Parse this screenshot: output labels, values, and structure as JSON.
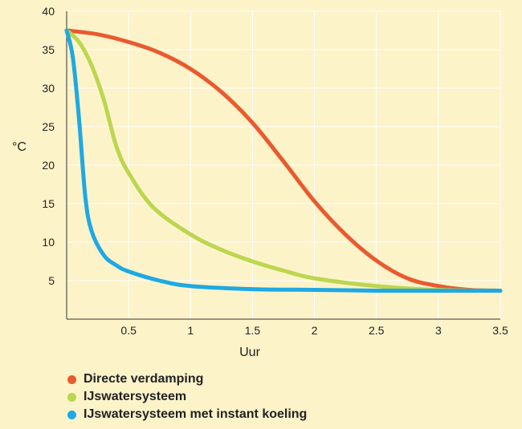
{
  "chart_data": {
    "type": "line",
    "xlabel": "Uur",
    "ylabel": "°C",
    "xlim": [
      0,
      3.5
    ],
    "ylim": [
      0,
      40
    ],
    "x_ticks": [
      0.5,
      1,
      1.5,
      2,
      2.5,
      3,
      3.5
    ],
    "x_tick_labels": [
      "0.5",
      "1",
      "1.5",
      "2",
      "2.5",
      "3",
      "3.5"
    ],
    "y_ticks": [
      5,
      10,
      15,
      20,
      25,
      30,
      35,
      40
    ],
    "y_tick_labels": [
      "5",
      "10",
      "15",
      "20",
      "25",
      "30",
      "35",
      "40"
    ],
    "grid": true,
    "legend_position": "bottom-left",
    "series": [
      {
        "name": "Directe verdamping",
        "color": "#ea5a2f",
        "x": [
          0,
          0.25,
          0.5,
          0.75,
          1.0,
          1.25,
          1.5,
          1.75,
          2.0,
          2.25,
          2.5,
          2.75,
          3.0,
          3.25,
          3.5
        ],
        "y": [
          37.5,
          37.0,
          36.0,
          34.6,
          32.5,
          29.5,
          25.5,
          20.5,
          15.3,
          11.0,
          7.6,
          5.3,
          4.3,
          3.8,
          3.7
        ]
      },
      {
        "name": "IJswatersysteem",
        "color": "#bcd64f",
        "x": [
          0,
          0.1,
          0.2,
          0.3,
          0.4,
          0.5,
          0.7,
          1.0,
          1.25,
          1.5,
          1.75,
          2.0,
          2.5,
          3.0,
          3.5
        ],
        "y": [
          37.5,
          36.0,
          33.0,
          28.5,
          22.5,
          19.0,
          14.5,
          11.0,
          9.0,
          7.5,
          6.3,
          5.3,
          4.3,
          3.8,
          3.7
        ]
      },
      {
        "name": "IJswatersysteem met instant koeling",
        "color": "#1ea9e4",
        "x": [
          0,
          0.05,
          0.1,
          0.15,
          0.2,
          0.3,
          0.4,
          0.5,
          0.75,
          1.0,
          1.5,
          2.0,
          2.5,
          3.0,
          3.5
        ],
        "y": [
          37.5,
          34.0,
          26.0,
          16.0,
          11.5,
          8.3,
          7.0,
          6.2,
          5.0,
          4.3,
          3.9,
          3.8,
          3.7,
          3.7,
          3.7
        ]
      }
    ]
  }
}
